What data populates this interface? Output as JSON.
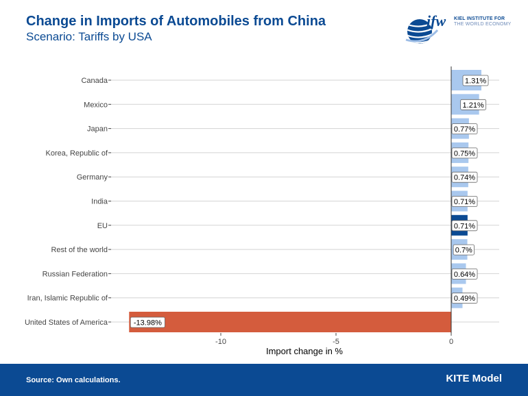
{
  "header": {
    "title": "Change in Imports of Automobiles from China",
    "subtitle": "Scenario: Tariffs by USA"
  },
  "logo": {
    "mark": "ifw",
    "line1": "KIEL INSTITUTE FOR",
    "line2": "THE WORLD ECONOMY"
  },
  "footer": {
    "source": "Source: Own calculations.",
    "brand": "KITE Model"
  },
  "colors": {
    "positive": "#a9c8ee",
    "highlight": "#0b4a93",
    "negative": "#d45c3d",
    "grid": "#d3d3d3"
  },
  "chart_data": {
    "type": "bar",
    "orientation": "horizontal",
    "xlabel": "Import change in %",
    "xlim": [
      -15,
      2
    ],
    "xticks": [
      -10,
      -5,
      0
    ],
    "grid": true,
    "categories": [
      "Canada",
      "Mexico",
      "Japan",
      "Korea, Republic of",
      "Germany",
      "India",
      "EU",
      "Rest of the world",
      "Russian Federation",
      "Iran, Islamic Republic of",
      "United States of America"
    ],
    "values": [
      1.31,
      1.21,
      0.77,
      0.75,
      0.74,
      0.71,
      0.71,
      0.7,
      0.64,
      0.49,
      -13.98
    ],
    "labels": [
      "1.31%",
      "1.21%",
      "0.77%",
      "0.75%",
      "0.74%",
      "0.71%",
      "0.71%",
      "0.7%",
      "0.64%",
      "0.49%",
      "-13.98%"
    ],
    "highlight": [
      "EU"
    ]
  }
}
